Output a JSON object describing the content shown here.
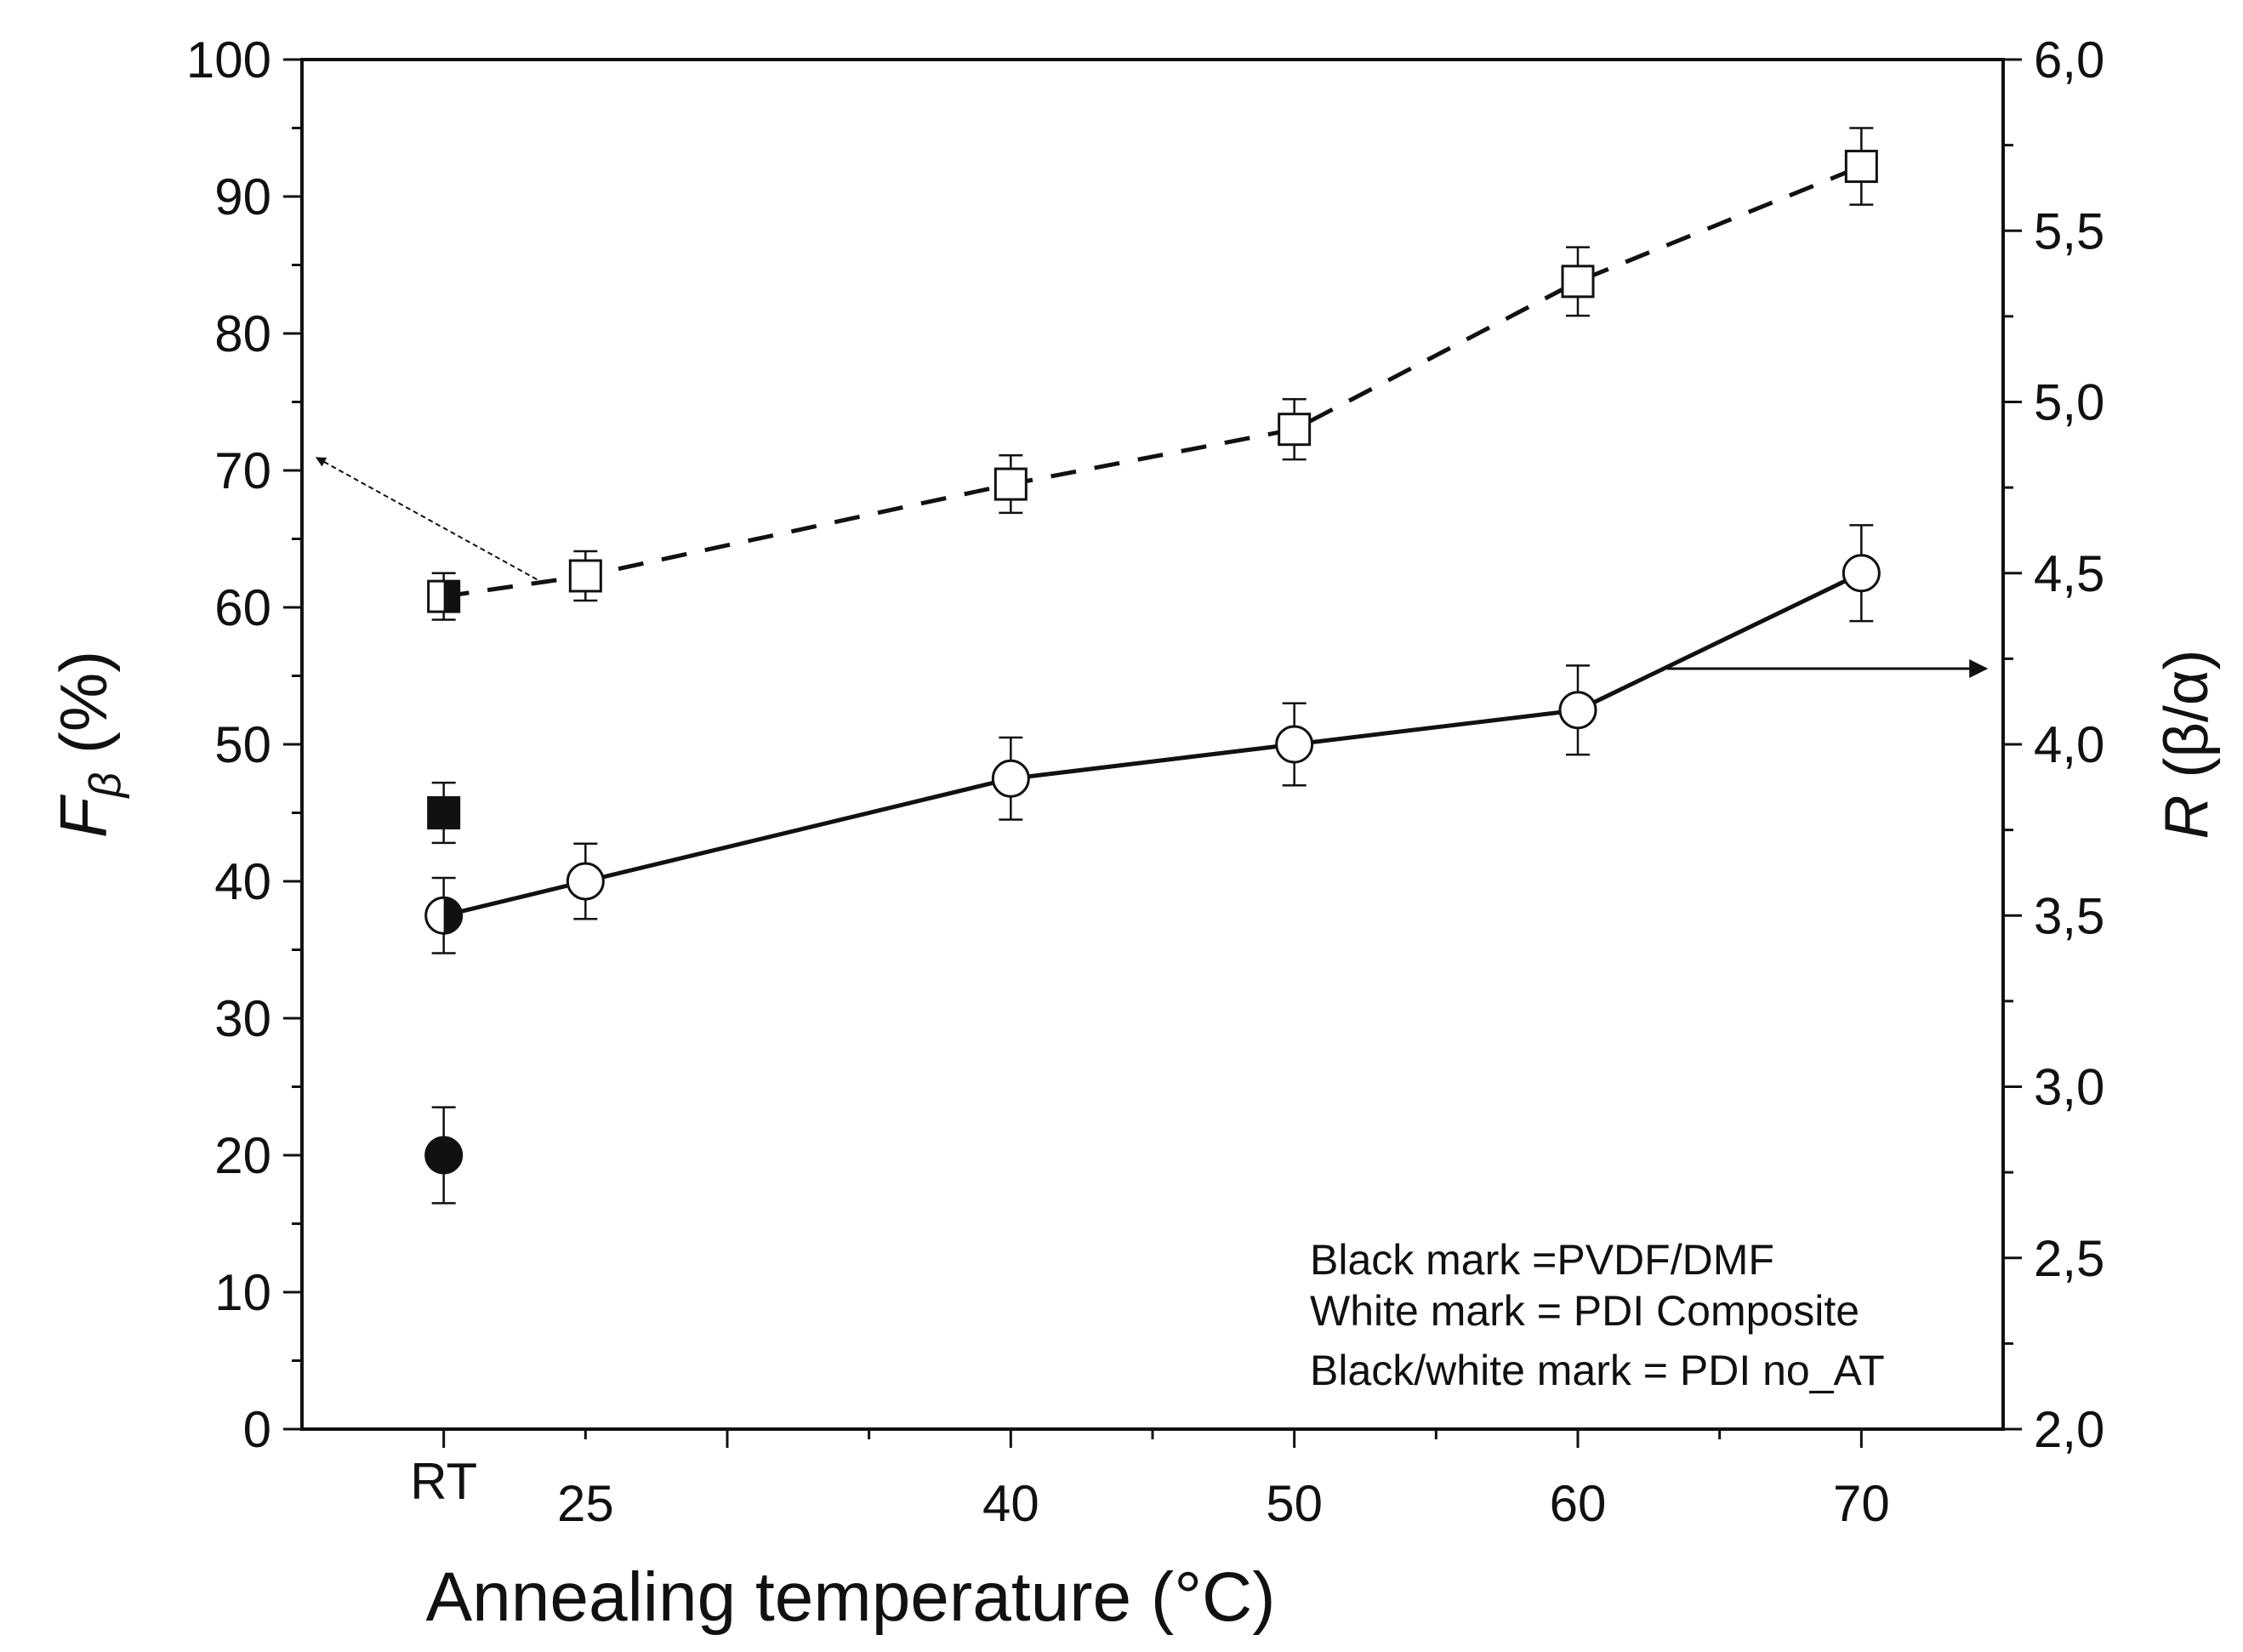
{
  "chart_data": {
    "type": "scatter",
    "title": "",
    "xlabel": "Annealing temperature (°C)",
    "ylabel_left": {
      "symbol": "F",
      "subscript": "β",
      "unit": " (%)"
    },
    "ylabel_right": {
      "symbol": "R",
      "unit": " (β/α)"
    },
    "x_range": [
      15,
      75
    ],
    "y_left_range": [
      0,
      100
    ],
    "y_right_range": [
      2.0,
      6.0
    ],
    "x_ticks": [
      {
        "value": 20,
        "label": "RT"
      },
      {
        "value": 25,
        "label": "25"
      },
      {
        "value": 40,
        "label": "40"
      },
      {
        "value": 50,
        "label": "50"
      },
      {
        "value": 60,
        "label": "60"
      },
      {
        "value": 70,
        "label": "70"
      }
    ],
    "y_left_ticks": [
      "0",
      "10",
      "20",
      "30",
      "40",
      "50",
      "60",
      "70",
      "80",
      "90",
      "100"
    ],
    "y_right_ticks": [
      "2,0",
      "2,5",
      "3,0",
      "3,5",
      "4,0",
      "4,5",
      "5,0",
      "5,5",
      "6,0"
    ],
    "series": [
      {
        "name": "Fβ PDI Composite",
        "axis": "left",
        "marker": "square",
        "fill": "white",
        "line": "dashed",
        "points": [
          {
            "x": 20,
            "y": 60.8,
            "err": 1.7,
            "fill": "half"
          },
          {
            "x": 25,
            "y": 62.3,
            "err": 1.8
          },
          {
            "x": 40,
            "y": 69.0,
            "err": 2.1
          },
          {
            "x": 50,
            "y": 73.0,
            "err": 2.2
          },
          {
            "x": 60,
            "y": 83.8,
            "err": 2.5
          },
          {
            "x": 70,
            "y": 92.2,
            "err": 2.8
          }
        ]
      },
      {
        "name": "R PDI Composite",
        "axis": "right",
        "marker": "circle",
        "fill": "white",
        "line": "solid",
        "points": [
          {
            "x": 20,
            "y": 3.5,
            "err": 0.11,
            "fill": "half"
          },
          {
            "x": 25,
            "y": 3.6,
            "err": 0.11
          },
          {
            "x": 40,
            "y": 3.9,
            "err": 0.12
          },
          {
            "x": 50,
            "y": 4.0,
            "err": 0.12
          },
          {
            "x": 60,
            "y": 4.1,
            "err": 0.13
          },
          {
            "x": 70,
            "y": 4.5,
            "err": 0.14
          }
        ]
      },
      {
        "name": "Fβ PVDF/DMF",
        "axis": "left",
        "marker": "square",
        "fill": "black",
        "line": "none",
        "points": [
          {
            "x": 20,
            "y": 45.0,
            "err": 2.2
          }
        ]
      },
      {
        "name": "R PVDF/DMF",
        "axis": "right",
        "marker": "circle",
        "fill": "black",
        "line": "none",
        "points": [
          {
            "x": 20,
            "y": 2.8,
            "err": 0.14
          }
        ]
      }
    ],
    "annotations": [
      "Black mark =PVDF/DMF",
      "White mark = PDI Composite",
      "Black/white mark = PDI no_AT"
    ],
    "grid": false,
    "colors": {
      "ink": "#111111",
      "background": "#ffffff"
    }
  }
}
